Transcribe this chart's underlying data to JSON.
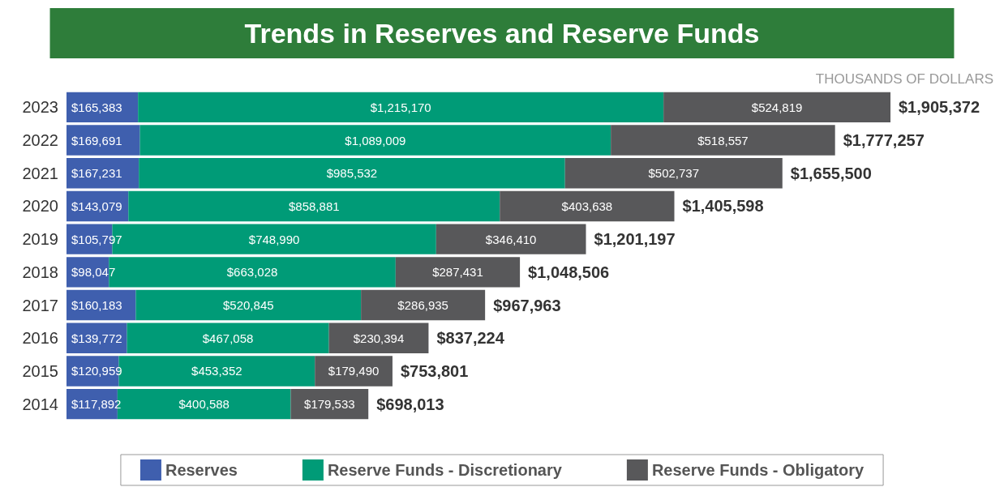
{
  "chart_data": {
    "type": "bar",
    "title": "Trends in Reserves and Reserve Funds",
    "subtitle": "THOUSANDS OF DOLLARS",
    "orientation": "horizontal",
    "stacked": true,
    "legend": "bottom",
    "categories": [
      "2023",
      "2022",
      "2021",
      "2020",
      "2019",
      "2018",
      "2017",
      "2016",
      "2015",
      "2014"
    ],
    "series": [
      {
        "name": "Reserves",
        "color": "#3f5fae",
        "values": [
          165383,
          169691,
          167231,
          143079,
          105797,
          98047,
          160183,
          139772,
          120959,
          117892
        ],
        "value_labels": [
          "$165,383",
          "$169,691",
          "$167,231",
          "$143,079",
          "$105,797",
          "$98,047",
          "$160,183",
          "$139,772",
          "$120,959",
          "$117,892"
        ]
      },
      {
        "name": "Reserve Funds - Discretionary",
        "color": "#009b77",
        "values": [
          1215170,
          1089009,
          985532,
          858881,
          748990,
          663028,
          520845,
          467058,
          453352,
          400588
        ],
        "value_labels": [
          "$1,215,170",
          "$1,089,009",
          "$985,532",
          "$858,881",
          "$748,990",
          "$663,028",
          "$520,845",
          "$467,058",
          "$453,352",
          "$400,588"
        ]
      },
      {
        "name": "Reserve Funds - Obligatory",
        "color": "#58585a",
        "values": [
          524819,
          518557,
          502737,
          403638,
          346410,
          287431,
          286935,
          230394,
          179490,
          179533
        ],
        "value_labels": [
          "$524,819",
          "$518,557",
          "$502,737",
          "$403,638",
          "$346,410",
          "$287,431",
          "$286,935",
          "$230,394",
          "$179,490",
          "$179,533"
        ]
      }
    ],
    "totals": [
      "$1,905,372",
      "$1,777,257",
      "$1,655,500",
      "$1,405,598",
      "$1,201,197",
      "$1,048,506",
      "$967,963",
      "$837,224",
      "$753,801",
      "$698,013"
    ]
  }
}
